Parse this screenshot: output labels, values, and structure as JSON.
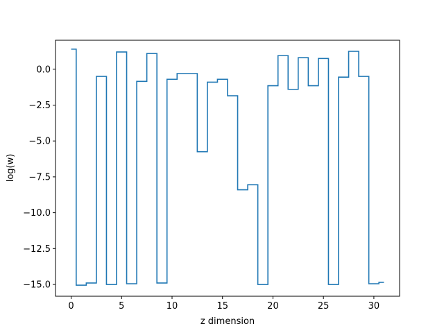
{
  "chart_data": {
    "type": "line",
    "drawstyle": "steps-mid",
    "title": "",
    "xlabel": "z dimension",
    "ylabel": "log(w)",
    "xlim": [
      -1.55,
      32.55
    ],
    "ylim": [
      -15.82,
      2.02
    ],
    "grid": false,
    "line_color": "#1f77b4",
    "xticks": [
      0,
      5,
      10,
      15,
      20,
      25,
      30
    ],
    "xtick_labels": [
      "0",
      "5",
      "10",
      "15",
      "20",
      "25",
      "30"
    ],
    "yticks": [
      0.0,
      -2.5,
      -5.0,
      -7.5,
      -10.0,
      -12.5,
      -15.0
    ],
    "ytick_labels": [
      "0.0",
      "−2.5",
      "−5.0",
      "−7.5",
      "−10.0",
      "−12.5",
      "−15.0"
    ],
    "series": [
      {
        "x": [
          0,
          1,
          2,
          3,
          4,
          5,
          6,
          7,
          8,
          9,
          10,
          11,
          12,
          13,
          14,
          15,
          16,
          17,
          18,
          19,
          20,
          21,
          22,
          23,
          24,
          25,
          26,
          27,
          28,
          29,
          30,
          31
        ],
        "values": [
          1.4,
          -15.05,
          -14.9,
          -0.5,
          -15.0,
          1.2,
          -14.95,
          -0.85,
          1.1,
          -14.9,
          -0.7,
          -0.3,
          -0.3,
          -5.75,
          -0.9,
          -0.7,
          -1.85,
          -8.4,
          -8.05,
          -15.0,
          -1.15,
          0.95,
          -1.4,
          0.8,
          -1.15,
          0.75,
          -15.0,
          -0.55,
          1.25,
          -0.5,
          -14.95,
          -14.85
        ]
      }
    ]
  }
}
